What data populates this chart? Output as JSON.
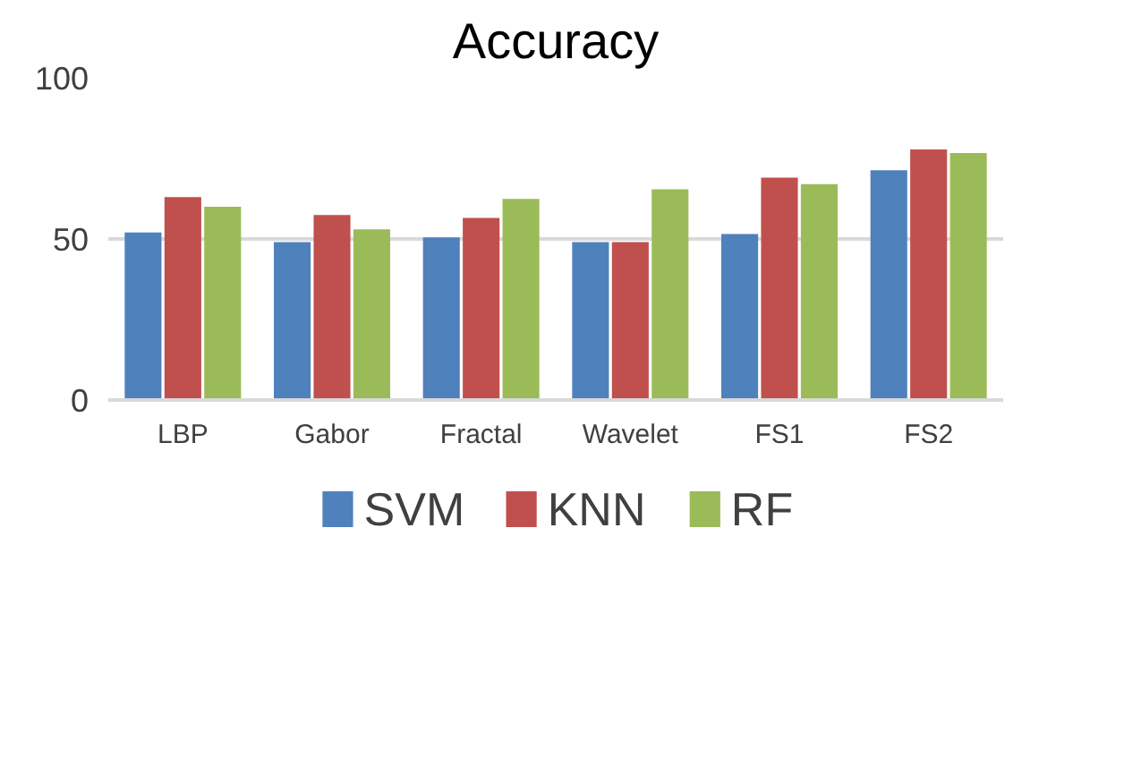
{
  "chart_data": {
    "type": "bar",
    "title": "Accuracy",
    "categories": [
      "LBP",
      "Gabor",
      "Fractal",
      "Wavelet",
      "FS1",
      "FS2"
    ],
    "series": [
      {
        "name": "SVM",
        "color": "#4f81bd",
        "values": [
          52,
          49,
          50.5,
          49,
          51.5,
          71.3
        ]
      },
      {
        "name": "KNN",
        "color": "#c0504d",
        "values": [
          63,
          57.4,
          56.5,
          49,
          69,
          77.8
        ]
      },
      {
        "name": "RF",
        "color": "#9bbb59",
        "values": [
          60,
          53,
          62.4,
          65.4,
          67,
          76.7
        ]
      }
    ],
    "ylim": [
      0,
      100
    ],
    "yticks": [
      0,
      50,
      100
    ],
    "grid": "y",
    "legend": "bottom"
  }
}
